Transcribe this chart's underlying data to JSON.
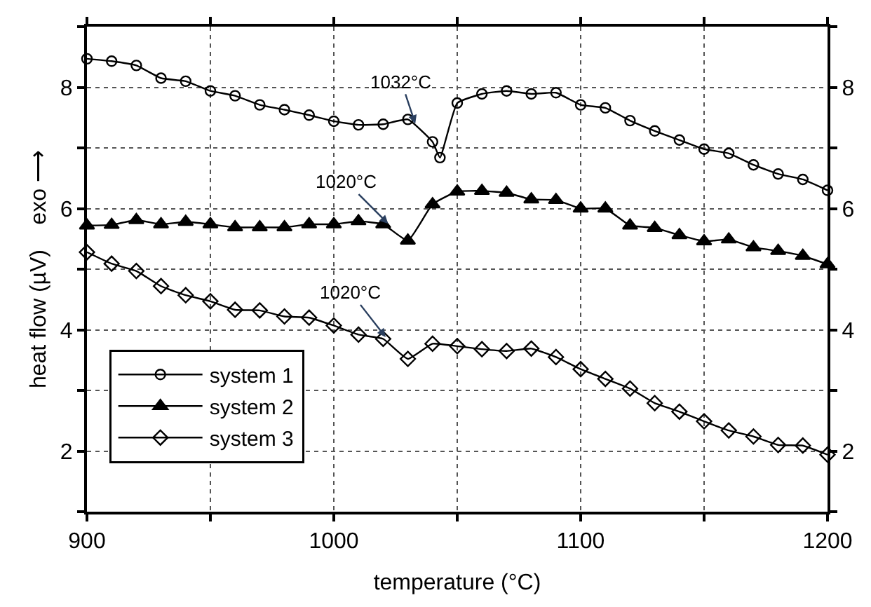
{
  "chart_data": {
    "type": "line",
    "xlabel": "temperature (°C)",
    "ylabel": "heat flow (µV)    exo ⟶",
    "xlim": [
      900,
      1200
    ],
    "ylim": [
      1,
      9
    ],
    "xticks": [
      900,
      {
        "value": 950,
        "label": null
      },
      1000,
      {
        "value": 1050,
        "label": null
      },
      1100,
      {
        "value": 1150,
        "label": null
      },
      1200
    ],
    "yticks": [
      {
        "value": 1,
        "label": null
      },
      2,
      {
        "value": 3,
        "label": null
      },
      4,
      {
        "value": 5,
        "label": null
      },
      6,
      {
        "value": 7,
        "label": null
      },
      8,
      {
        "value": 9,
        "label": null
      }
    ],
    "y2lim": [
      1,
      9
    ],
    "y2ticks": [
      {
        "value": 1,
        "label": null
      },
      2,
      {
        "value": 3,
        "label": null
      },
      4,
      {
        "value": 5,
        "label": null
      },
      6,
      {
        "value": 7,
        "label": null
      },
      8,
      {
        "value": 9,
        "label": null
      }
    ],
    "grid": true,
    "legend": "bottom left",
    "line_style": "solid",
    "series": [
      {
        "name": "system 1",
        "color": "#000000",
        "marker": "circle",
        "x": [
          900,
          910,
          920,
          930,
          940,
          950,
          960,
          970,
          980,
          990,
          1000,
          1010,
          1020,
          1030,
          1040,
          1043,
          1050,
          1060,
          1070,
          1080,
          1090,
          1100,
          1110,
          1120,
          1130,
          1140,
          1150,
          1160,
          1170,
          1180,
          1190,
          1200
        ],
        "values": [
          8.47,
          8.43,
          8.36,
          8.15,
          8.1,
          7.94,
          7.86,
          7.71,
          7.63,
          7.54,
          7.44,
          7.38,
          7.39,
          7.47,
          7.1,
          6.84,
          7.74,
          7.89,
          7.94,
          7.89,
          7.91,
          7.71,
          7.66,
          7.45,
          7.28,
          7.13,
          6.98,
          6.91,
          6.72,
          6.57,
          6.48,
          6.3
        ]
      },
      {
        "name": "system 2",
        "color": "#000000",
        "marker": "triangle",
        "x": [
          900,
          910,
          920,
          930,
          940,
          950,
          960,
          970,
          980,
          990,
          1000,
          1010,
          1020,
          1030,
          1040,
          1050,
          1060,
          1070,
          1080,
          1090,
          1100,
          1110,
          1120,
          1130,
          1140,
          1150,
          1160,
          1170,
          1180,
          1190,
          1200
        ],
        "values": [
          5.72,
          5.73,
          5.81,
          5.74,
          5.78,
          5.74,
          5.69,
          5.69,
          5.69,
          5.74,
          5.74,
          5.79,
          5.74,
          5.47,
          6.07,
          6.28,
          6.29,
          6.26,
          6.15,
          6.14,
          6.0,
          6.0,
          5.72,
          5.68,
          5.56,
          5.46,
          5.49,
          5.36,
          5.3,
          5.22,
          5.08
        ]
      },
      {
        "name": "system 3",
        "color": "#000000",
        "marker": "diamond",
        "x": [
          900,
          910,
          920,
          930,
          940,
          950,
          960,
          970,
          980,
          990,
          1000,
          1010,
          1020,
          1030,
          1040,
          1050,
          1060,
          1070,
          1080,
          1090,
          1100,
          1110,
          1120,
          1130,
          1140,
          1150,
          1160,
          1170,
          1180,
          1190,
          1200
        ],
        "values": [
          5.28,
          5.09,
          4.97,
          4.72,
          4.57,
          4.47,
          4.33,
          4.32,
          4.22,
          4.2,
          4.07,
          3.92,
          3.85,
          3.52,
          3.77,
          3.73,
          3.68,
          3.65,
          3.69,
          3.55,
          3.35,
          3.19,
          3.03,
          2.79,
          2.65,
          2.49,
          2.34,
          2.24,
          2.1,
          2.09,
          1.94
        ]
      }
    ],
    "annotations": [
      {
        "text": "1032°C",
        "x": 1033,
        "y": 7.4
      },
      {
        "text": "1020°C",
        "x": 1022,
        "y": 5.75
      },
      {
        "text": "1020°C",
        "x": 1021,
        "y": 3.88
      }
    ]
  }
}
